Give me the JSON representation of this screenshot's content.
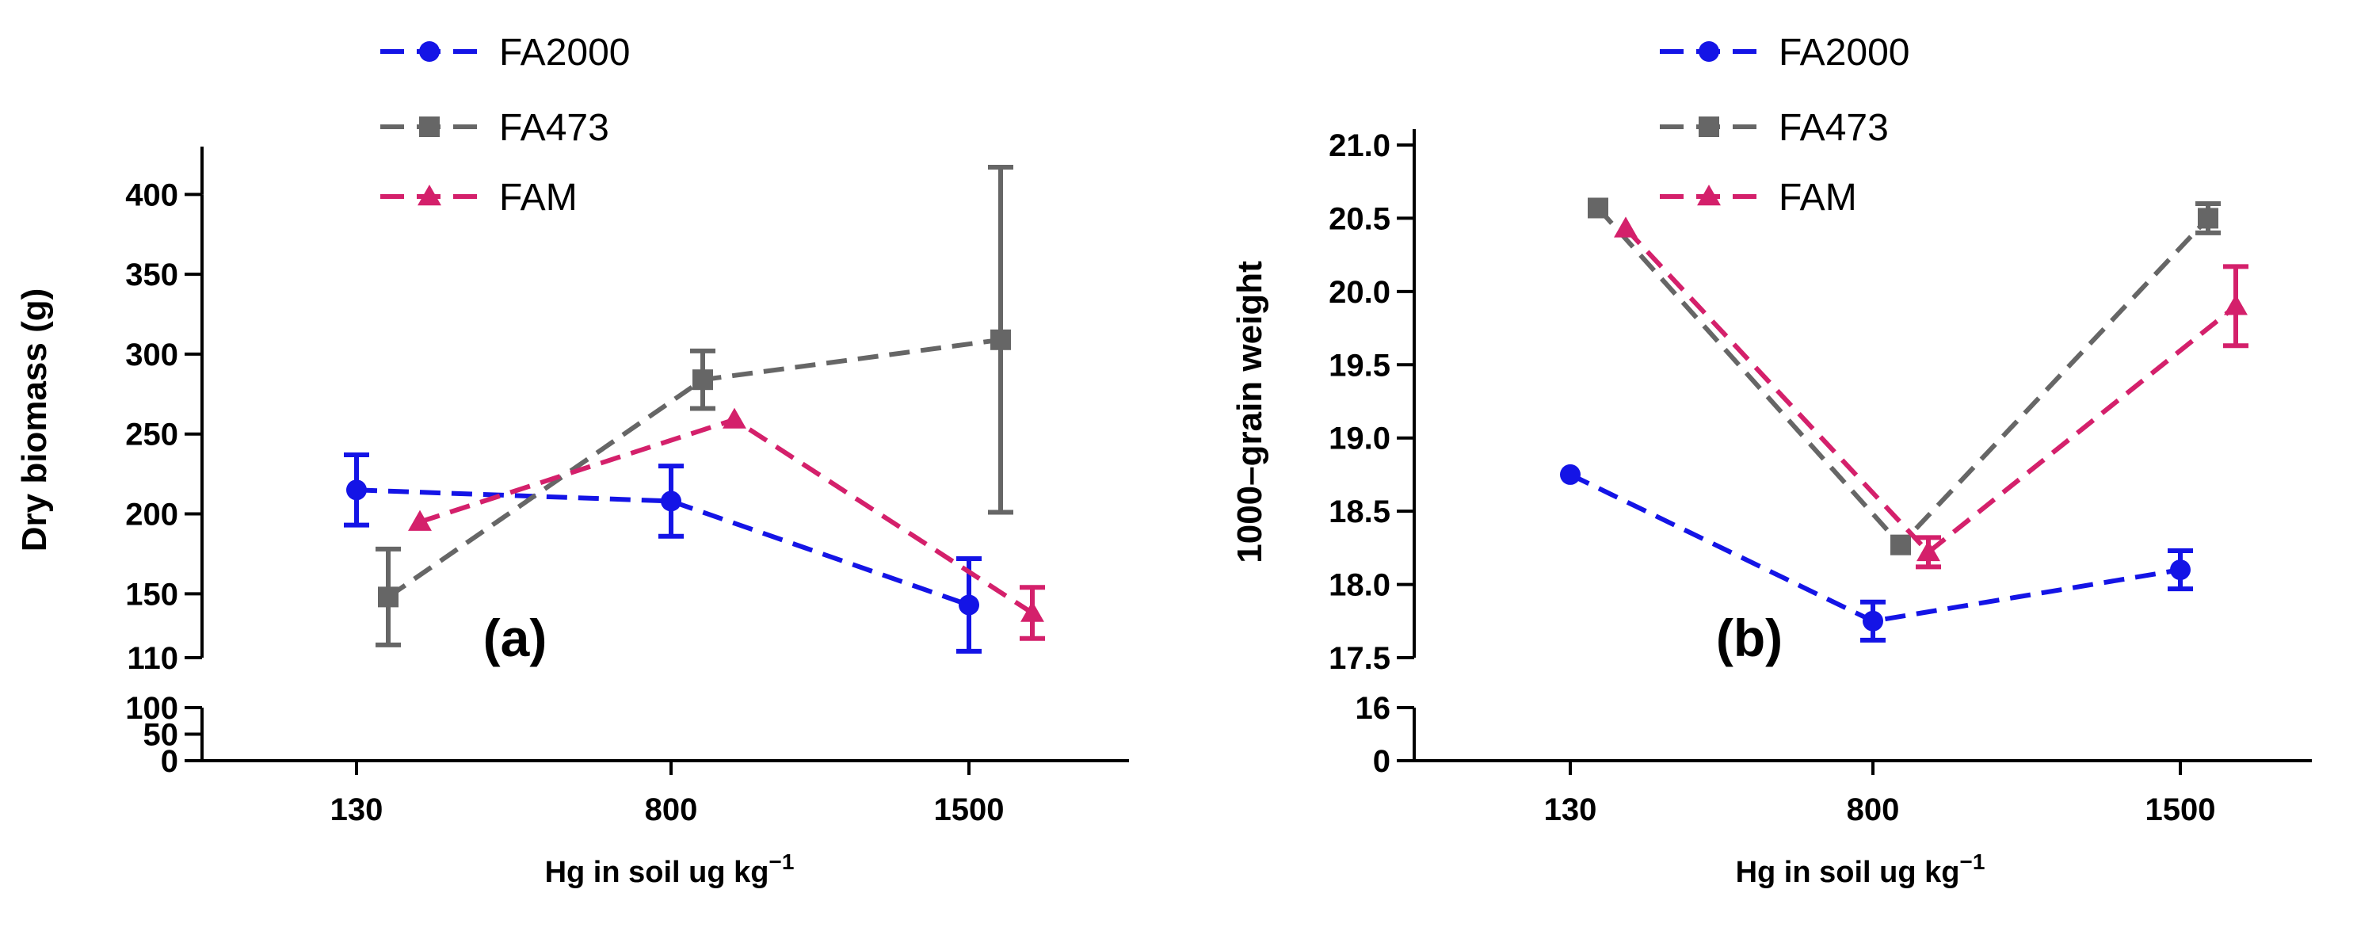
{
  "chart_data": [
    {
      "type": "line",
      "panel_label": "(a)",
      "xlabel": "Hg in soil ug kg",
      "xlabel_sup": "−1",
      "ylabel": "Dry biomass (g)",
      "categories": [
        "130",
        "800",
        "1500"
      ],
      "y_ticks_upper": [
        "110",
        "150",
        "200",
        "250",
        "300",
        "350",
        "400"
      ],
      "y_ticks_lower": [
        "0",
        "50",
        "100"
      ],
      "ylim_upper": [
        110,
        420
      ],
      "ylim_lower": [
        0,
        100
      ],
      "legend": [
        {
          "name": "FA2000",
          "color": "#1414e6",
          "marker": "circle"
        },
        {
          "name": "FA473",
          "color": "#666666",
          "marker": "square"
        },
        {
          "name": "FAM",
          "color": "#d4206b",
          "marker": "triangle"
        }
      ],
      "series": [
        {
          "name": "FA2000",
          "color": "#1414e6",
          "marker": "circle",
          "offset": 0.0,
          "values": [
            215,
            208,
            143
          ],
          "errors": [
            22,
            22,
            29
          ]
        },
        {
          "name": "FA473",
          "color": "#666666",
          "marker": "square",
          "offset": 0.1,
          "values": [
            148,
            284,
            309
          ],
          "errors": [
            30,
            18,
            108
          ]
        },
        {
          "name": "FAM",
          "color": "#d4206b",
          "marker": "triangle",
          "offset": 0.2,
          "values": [
            195,
            259,
            138
          ],
          "errors": [
            0,
            0,
            16
          ]
        }
      ]
    },
    {
      "type": "line",
      "panel_label": "(b)",
      "xlabel": "Hg in soil ug kg",
      "xlabel_sup": "−1",
      "ylabel": "1000–grain weight",
      "categories": [
        "130",
        "800",
        "1500"
      ],
      "y_ticks_upper": [
        "17.5",
        "18.0",
        "18.5",
        "19.0",
        "19.5",
        "20.0",
        "20.5",
        "21.0"
      ],
      "y_ticks_lower": [
        "0",
        "16"
      ],
      "ylim_upper": [
        17.5,
        21.0
      ],
      "ylim_lower": [
        0,
        16
      ],
      "legend": [
        {
          "name": "FA2000",
          "color": "#1414e6",
          "marker": "circle"
        },
        {
          "name": "FA473",
          "color": "#666666",
          "marker": "square"
        },
        {
          "name": "FAM",
          "color": "#d4206b",
          "marker": "triangle"
        }
      ],
      "series": [
        {
          "name": "FA2000",
          "color": "#1414e6",
          "marker": "circle",
          "offset": 0.0,
          "values": [
            18.75,
            17.75,
            18.1
          ],
          "errors": [
            0,
            0.13,
            0.13
          ]
        },
        {
          "name": "FA473",
          "color": "#666666",
          "marker": "square",
          "offset": 0.1,
          "values": [
            20.57,
            18.27,
            20.5
          ],
          "errors": [
            0,
            0,
            0.1
          ]
        },
        {
          "name": "FAM",
          "color": "#d4206b",
          "marker": "triangle",
          "offset": 0.2,
          "values": [
            20.43,
            18.22,
            19.9
          ],
          "errors": [
            0,
            0.1,
            0.27
          ]
        }
      ]
    }
  ]
}
